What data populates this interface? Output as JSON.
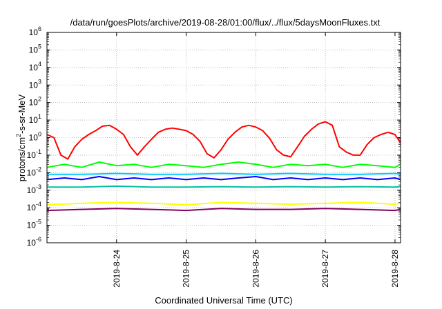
{
  "chart_data": {
    "type": "line",
    "title": "/data/run/goesPlots/archive/2019-08-28/01:00/flux/../flux/5daysMoonFluxes.txt",
    "xlabel": "Coordinated Universal Time (UTC)",
    "ylabel": "protons/cm2-s-sr-MeV",
    "ylabel_parts": {
      "pre": "protons/cm",
      "sup": "2",
      "post": "-s-sr-MeV"
    },
    "yscale": "log",
    "ylim_exponents": [
      -6,
      6
    ],
    "ytick_labels": [
      {
        "base": "10",
        "exp": "-6"
      },
      {
        "base": "10",
        "exp": "-5"
      },
      {
        "base": "10",
        "exp": "-4"
      },
      {
        "base": "10",
        "exp": "-3"
      },
      {
        "base": "10",
        "exp": "-2"
      },
      {
        "base": "10",
        "exp": "-1"
      },
      {
        "base": "10",
        "exp": "0"
      },
      {
        "base": "10",
        "exp": "1"
      },
      {
        "base": "10",
        "exp": "2"
      },
      {
        "base": "10",
        "exp": "3"
      },
      {
        "base": "10",
        "exp": "4"
      },
      {
        "base": "10",
        "exp": "5"
      },
      {
        "base": "10",
        "exp": "6"
      }
    ],
    "xlim_days": [
      23.0,
      28.08
    ],
    "xtick_days": [
      24,
      25,
      26,
      27,
      28
    ],
    "xtick_labels": [
      "2019-8-24",
      "2019-8-25",
      "2019-8-26",
      "2019-8-27",
      "2019-8-28"
    ],
    "grid": true,
    "series": [
      {
        "color": "#ff0000",
        "x": [
          23.0,
          23.1,
          23.2,
          23.3,
          23.4,
          23.5,
          23.6,
          23.7,
          23.8,
          23.9,
          24.0,
          24.1,
          24.2,
          24.3,
          24.4,
          24.5,
          24.6,
          24.7,
          24.8,
          24.9,
          25.0,
          25.1,
          25.2,
          25.3,
          25.4,
          25.5,
          25.6,
          25.7,
          25.8,
          25.9,
          26.0,
          26.1,
          26.2,
          26.3,
          26.4,
          26.5,
          26.6,
          26.7,
          26.8,
          26.9,
          27.0,
          27.1,
          27.2,
          27.3,
          27.4,
          27.5,
          27.6,
          27.7,
          27.8,
          27.9,
          28.0,
          28.08
        ],
        "y": [
          1.5,
          1.0,
          0.1,
          0.06,
          0.3,
          0.8,
          1.5,
          2.5,
          4.5,
          5.0,
          3.0,
          1.5,
          0.3,
          0.1,
          0.3,
          0.8,
          2.0,
          3.0,
          3.5,
          3.0,
          2.5,
          1.5,
          0.6,
          0.12,
          0.07,
          0.2,
          0.8,
          2.0,
          4.0,
          5.0,
          4.0,
          2.5,
          0.9,
          0.2,
          0.1,
          0.08,
          0.3,
          1.2,
          3.0,
          6.0,
          8.0,
          5.0,
          0.3,
          0.15,
          0.1,
          0.1,
          0.4,
          1.0,
          1.5,
          2.0,
          1.5,
          0.5
        ]
      },
      {
        "color": "#00ff00",
        "x": [
          23.0,
          23.25,
          23.5,
          23.75,
          24.0,
          24.25,
          24.5,
          24.75,
          25.0,
          25.25,
          25.5,
          25.75,
          26.0,
          26.25,
          26.5,
          26.75,
          27.0,
          27.25,
          27.5,
          27.75,
          28.0,
          28.08
        ],
        "y": [
          0.02,
          0.03,
          0.02,
          0.04,
          0.025,
          0.03,
          0.02,
          0.03,
          0.025,
          0.02,
          0.03,
          0.04,
          0.03,
          0.02,
          0.03,
          0.025,
          0.03,
          0.02,
          0.03,
          0.025,
          0.02,
          0.03
        ]
      },
      {
        "color": "#00ccff",
        "x": [
          23.0,
          23.5,
          24.0,
          24.5,
          25.0,
          25.5,
          26.0,
          26.5,
          27.0,
          27.5,
          28.0,
          28.08
        ],
        "y": [
          0.008,
          0.008,
          0.009,
          0.008,
          0.008,
          0.009,
          0.008,
          0.009,
          0.008,
          0.008,
          0.009,
          0.008
        ]
      },
      {
        "color": "#0000ff",
        "x": [
          23.0,
          23.25,
          23.5,
          23.75,
          24.0,
          24.25,
          24.5,
          24.75,
          25.0,
          25.25,
          25.5,
          25.75,
          26.0,
          26.25,
          26.5,
          26.75,
          27.0,
          27.25,
          27.5,
          27.75,
          28.0,
          28.08
        ],
        "y": [
          0.004,
          0.005,
          0.004,
          0.006,
          0.004,
          0.005,
          0.004,
          0.005,
          0.004,
          0.005,
          0.004,
          0.005,
          0.006,
          0.004,
          0.005,
          0.004,
          0.005,
          0.004,
          0.005,
          0.004,
          0.005,
          0.004
        ]
      },
      {
        "color": "#00c0a0",
        "x": [
          23.0,
          23.5,
          24.0,
          24.5,
          25.0,
          25.5,
          26.0,
          26.5,
          27.0,
          27.5,
          28.0,
          28.08
        ],
        "y": [
          0.0015,
          0.0015,
          0.0017,
          0.0015,
          0.0015,
          0.0016,
          0.0015,
          0.0016,
          0.0015,
          0.0016,
          0.0015,
          0.0016
        ]
      },
      {
        "color": "#ffff00",
        "x": [
          23.0,
          23.5,
          24.0,
          24.5,
          25.0,
          25.5,
          26.0,
          26.5,
          27.0,
          27.5,
          28.0,
          28.08
        ],
        "y": [
          0.00015,
          0.00018,
          0.0002,
          0.00018,
          0.00015,
          0.0002,
          0.00018,
          0.00016,
          0.00018,
          0.0002,
          0.00016,
          0.00018
        ]
      },
      {
        "color": "#800060",
        "x": [
          23.0,
          23.5,
          24.0,
          24.5,
          25.0,
          25.5,
          26.0,
          26.5,
          27.0,
          27.5,
          28.0,
          28.08
        ],
        "y": [
          7e-05,
          8e-05,
          9e-05,
          8e-05,
          7e-05,
          9e-05,
          8e-05,
          8e-05,
          9e-05,
          8e-05,
          7e-05,
          8e-05
        ]
      }
    ]
  }
}
